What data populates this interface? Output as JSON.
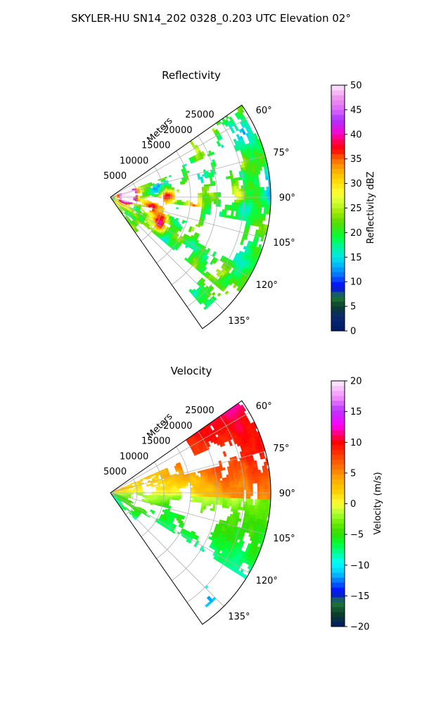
{
  "figure_title": "SKYLER-HU  SN14_202  0328_0.203 UTC Elevation 02°",
  "chart_data": [
    {
      "type": "heatmap",
      "subtype": "polar-ppi",
      "title": "Reflectivity",
      "range_label": "Meters",
      "range_ticks": [
        "5000",
        "10000",
        "15000",
        "20000",
        "25000"
      ],
      "range_tick_values": [
        5000,
        10000,
        15000,
        20000,
        25000
      ],
      "azimuth_ticks": [
        "60°",
        "75°",
        "90°",
        "105°",
        "120°",
        "135°"
      ],
      "azimuth_tick_values": [
        60,
        75,
        90,
        105,
        120,
        135
      ],
      "azimuth_range": [
        55,
        145
      ],
      "range_max": 30000,
      "colorbar": {
        "label": "Reflectivity dBZ",
        "min": 0,
        "max": 50,
        "ticks": [
          "0",
          "5",
          "10",
          "15",
          "20",
          "25",
          "30",
          "35",
          "40",
          "45",
          "50"
        ]
      },
      "features": [
        {
          "az": 83,
          "r": 2600,
          "value": 40
        },
        {
          "az": 78,
          "r": 3700,
          "value": 42
        },
        {
          "az": 96,
          "r": 4000,
          "value": 33
        },
        {
          "az": 103,
          "r": 7500,
          "value": 34
        },
        {
          "az": 110,
          "r": 9700,
          "value": 34
        },
        {
          "az": 88,
          "r": 10500,
          "value": 36
        },
        {
          "az": 97,
          "r": 15800,
          "value": 33
        },
        {
          "az": 118,
          "r": 11000,
          "value": 35
        },
        {
          "az": 89,
          "r": 24000,
          "value": 32
        },
        {
          "az": 75,
          "r": 25000,
          "value": 30
        },
        {
          "az": 80,
          "r": 9000,
          "value": 14
        },
        {
          "az": 125,
          "r": 13500,
          "value": 20
        }
      ]
    },
    {
      "type": "heatmap",
      "subtype": "polar-ppi",
      "title": "Velocity",
      "range_label": "Meters",
      "range_ticks": [
        "5000",
        "10000",
        "15000",
        "20000",
        "25000"
      ],
      "range_tick_values": [
        5000,
        10000,
        15000,
        20000,
        25000
      ],
      "azimuth_ticks": [
        "60°",
        "75°",
        "90°",
        "105°",
        "120°",
        "135°"
      ],
      "azimuth_tick_values": [
        60,
        75,
        90,
        105,
        120,
        135
      ],
      "azimuth_range": [
        55,
        145
      ],
      "range_max": 30000,
      "colorbar": {
        "label": "Velocity (m/s)",
        "min": -20,
        "max": 20,
        "ticks": [
          "−20",
          "−15",
          "−10",
          "−5",
          "0",
          "5",
          "10",
          "15",
          "20"
        ]
      },
      "features": [
        {
          "az": 68,
          "r": 25000,
          "value": 10
        },
        {
          "az": 80,
          "r": 23000,
          "value": 8
        },
        {
          "az": 90,
          "r": 15000,
          "value": 1
        },
        {
          "az": 105,
          "r": 12000,
          "value": -6
        },
        {
          "az": 112,
          "r": 10000,
          "value": -8
        },
        {
          "az": 98,
          "r": 6000,
          "value": -2
        },
        {
          "az": 75,
          "r": 10000,
          "value": 2
        },
        {
          "az": 138,
          "r": 27000,
          "value": -11
        }
      ]
    }
  ]
}
